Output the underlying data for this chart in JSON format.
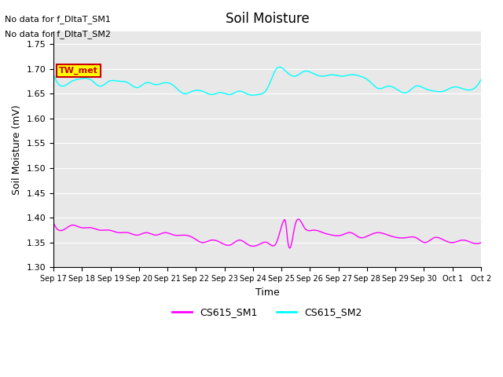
{
  "title": "Soil Moisture",
  "ylabel": "Soil Moisture (mV)",
  "xlabel": "Time",
  "ylim": [
    1.3,
    1.775
  ],
  "yticks": [
    1.3,
    1.35,
    1.4,
    1.45,
    1.5,
    1.55,
    1.6,
    1.65,
    1.7,
    1.75
  ],
  "xtick_labels": [
    "Sep 17",
    "Sep 18",
    "Sep 19",
    "Sep 20",
    "Sep 21",
    "Sep 22",
    "Sep 23",
    "Sep 24",
    "Sep 25",
    "Sep 26",
    "Sep 27",
    "Sep 28",
    "Sep 29",
    "Sep 30",
    "Oct 1",
    "Oct 2"
  ],
  "no_data_text": [
    "No data for f_DltaT_SM1",
    "No data for f_DltaT_SM2"
  ],
  "legend_labels": [
    "CS615_SM1",
    "CS615_SM2"
  ],
  "line1_color": "#ff00ff",
  "line2_color": "#00ffff",
  "tw_met_box_color": "#ffff00",
  "tw_met_text_color": "#cc0000",
  "tw_met_border_color": "#cc0000",
  "background_color": "#ffffff",
  "plot_bg_color": "#e8e8e8",
  "grid_color": "#ffffff",
  "sm1_x": [
    0,
    0.5,
    1,
    1.5,
    2,
    2.5,
    3,
    3.5,
    4,
    4.5,
    5,
    5.5,
    6,
    6.5,
    7,
    7.5,
    8,
    8.5,
    9,
    9.5,
    10,
    10.5,
    11,
    11.5,
    12,
    12.4,
    12.5,
    12.6,
    13,
    13.5,
    14,
    14.5,
    15,
    15.5,
    16,
    16.5,
    17,
    17.5,
    18,
    18.5,
    19,
    19.5,
    20,
    20.5,
    21,
    21.5,
    22,
    22.5,
    23
  ],
  "sm1_y": [
    1.39,
    1.375,
    1.385,
    1.38,
    1.38,
    1.375,
    1.375,
    1.37,
    1.37,
    1.365,
    1.37,
    1.365,
    1.37,
    1.365,
    1.365,
    1.36,
    1.35,
    1.355,
    1.35,
    1.345,
    1.355,
    1.345,
    1.345,
    1.35,
    1.35,
    1.395,
    1.39,
    1.355,
    1.385,
    1.38,
    1.375,
    1.37,
    1.365,
    1.365,
    1.37,
    1.36,
    1.365,
    1.37,
    1.365,
    1.36,
    1.36,
    1.36,
    1.35,
    1.36,
    1.355,
    1.35,
    1.355,
    1.35,
    1.35
  ],
  "sm2_x": [
    0,
    0.5,
    1,
    1.5,
    2,
    2.5,
    3,
    3.5,
    4,
    4.5,
    5,
    5.5,
    6,
    6.5,
    7,
    7.5,
    8,
    8.5,
    9,
    9.5,
    10,
    10.5,
    11,
    11.5,
    12,
    12.5,
    13,
    13.5,
    14,
    14.5,
    15,
    15.5,
    16,
    16.5,
    17,
    17.5,
    18,
    18.5,
    19,
    19.5,
    20,
    20.5,
    21,
    21.5,
    22,
    22.5,
    23
  ],
  "sm2_y": [
    1.69,
    1.665,
    1.675,
    1.68,
    1.678,
    1.665,
    1.675,
    1.675,
    1.672,
    1.662,
    1.672,
    1.668,
    1.672,
    1.665,
    1.65,
    1.655,
    1.655,
    1.648,
    1.652,
    1.648,
    1.655,
    1.648,
    1.648,
    1.66,
    1.7,
    1.695,
    1.685,
    1.695,
    1.69,
    1.685,
    1.688,
    1.685,
    1.688,
    1.685,
    1.675,
    1.66,
    1.665,
    1.658,
    1.652,
    1.665,
    1.66,
    1.655,
    1.655,
    1.663,
    1.66,
    1.658,
    1.678
  ]
}
